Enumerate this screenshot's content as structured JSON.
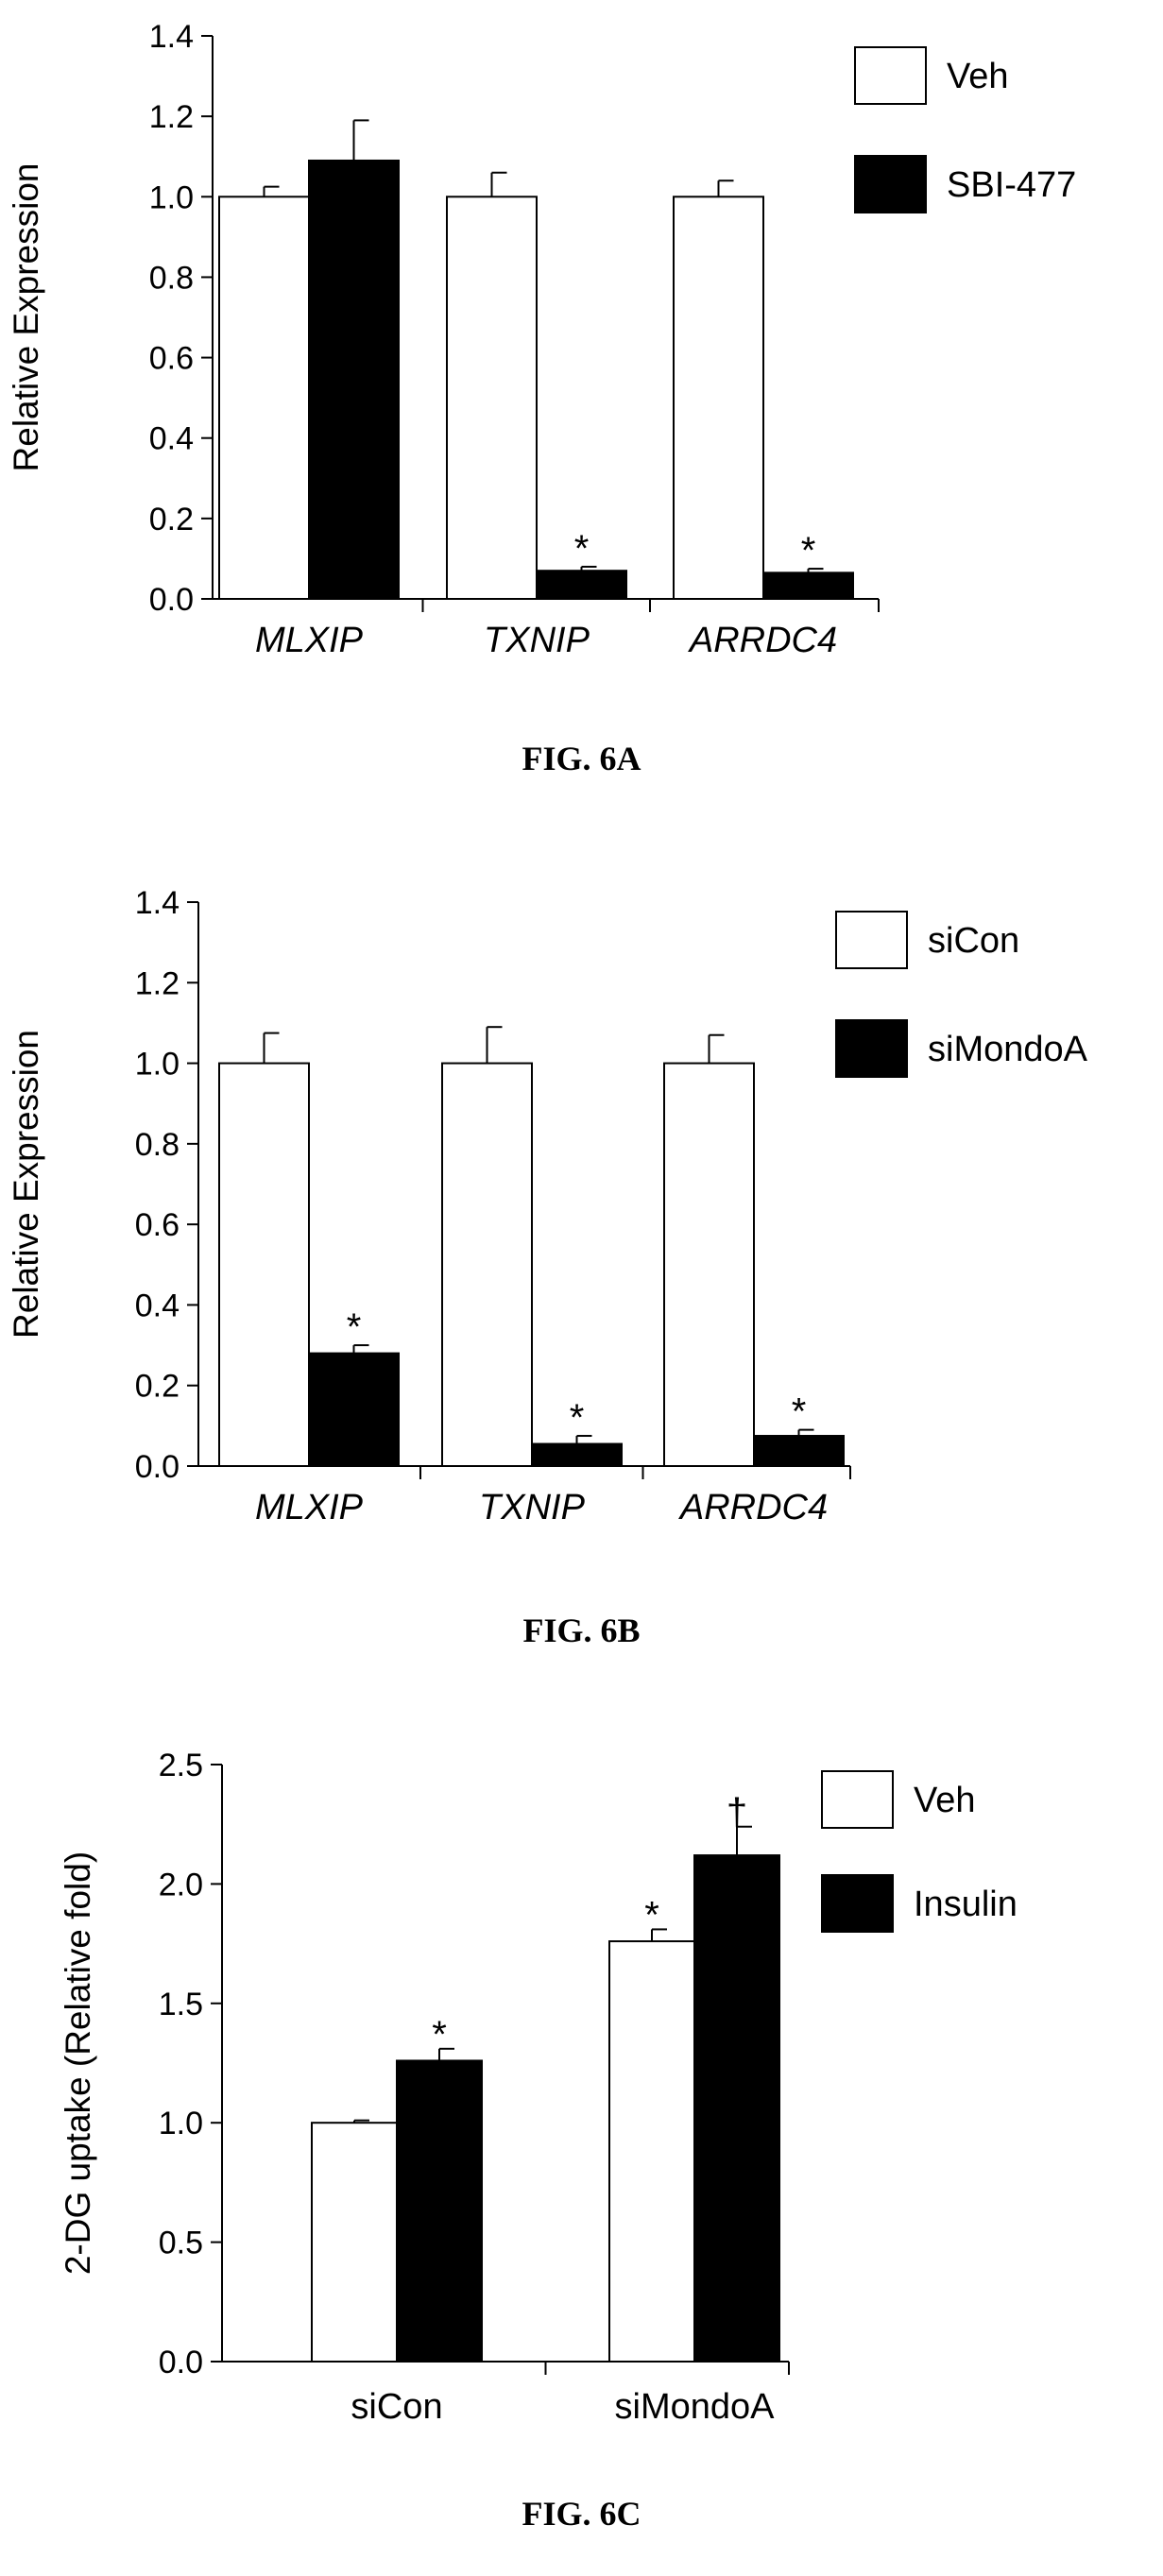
{
  "chart_data": [
    {
      "type": "bar",
      "caption": "FIG. 6A",
      "ylabel": "Relative Expression",
      "ylim": [
        0,
        1.4
      ],
      "yticks": [
        "0.0",
        "0.2",
        "0.4",
        "0.6",
        "0.8",
        "1.0",
        "1.2",
        "1.4"
      ],
      "categories": [
        "MLXIP",
        "TXNIP",
        "ARRDC4"
      ],
      "categories_italic": true,
      "legend_position": "top-right",
      "series": [
        {
          "name": "Veh",
          "color": "#ffffff",
          "values": [
            1.0,
            1.0,
            1.0
          ],
          "errors": [
            0.025,
            0.06,
            0.04
          ],
          "marks": [
            "",
            "",
            ""
          ]
        },
        {
          "name": "SBI-477",
          "color": "#000000",
          "values": [
            1.09,
            0.07,
            0.065
          ],
          "errors": [
            0.1,
            0.01,
            0.01
          ],
          "marks": [
            "",
            "*",
            "*"
          ]
        }
      ]
    },
    {
      "type": "bar",
      "caption": "FIG. 6B",
      "ylabel": "Relative Expression",
      "ylim": [
        0,
        1.4
      ],
      "yticks": [
        "0.0",
        "0.2",
        "0.4",
        "0.6",
        "0.8",
        "1.0",
        "1.2",
        "1.4"
      ],
      "categories": [
        "MLXIP",
        "TXNIP",
        "ARRDC4"
      ],
      "categories_italic": true,
      "legend_position": "top-right",
      "series": [
        {
          "name": "siCon",
          "color": "#ffffff",
          "values": [
            1.0,
            1.0,
            1.0
          ],
          "errors": [
            0.075,
            0.09,
            0.07
          ],
          "marks": [
            "",
            "",
            ""
          ]
        },
        {
          "name": "siMondoA",
          "color": "#000000",
          "values": [
            0.28,
            0.055,
            0.075
          ],
          "errors": [
            0.02,
            0.02,
            0.015
          ],
          "marks": [
            "*",
            "*",
            "*"
          ]
        }
      ]
    },
    {
      "type": "bar",
      "caption": "FIG. 6C",
      "ylabel": "2-DG uptake (Relative fold)",
      "ylim": [
        0,
        2.5
      ],
      "yticks": [
        "0.0",
        "0.5",
        "1.0",
        "1.5",
        "2.0",
        "2.5"
      ],
      "categories": [
        "siCon",
        "siMondoA"
      ],
      "categories_italic": false,
      "legend_position": "top-right",
      "series": [
        {
          "name": "Veh",
          "color": "#ffffff",
          "values": [
            1.0,
            1.76
          ],
          "errors": [
            0.01,
            0.05
          ],
          "marks": [
            "",
            "*"
          ]
        },
        {
          "name": "Insulin",
          "color": "#000000",
          "values": [
            1.26,
            2.12
          ],
          "errors": [
            0.05,
            0.12
          ],
          "marks": [
            "*",
            "†"
          ]
        }
      ]
    }
  ]
}
